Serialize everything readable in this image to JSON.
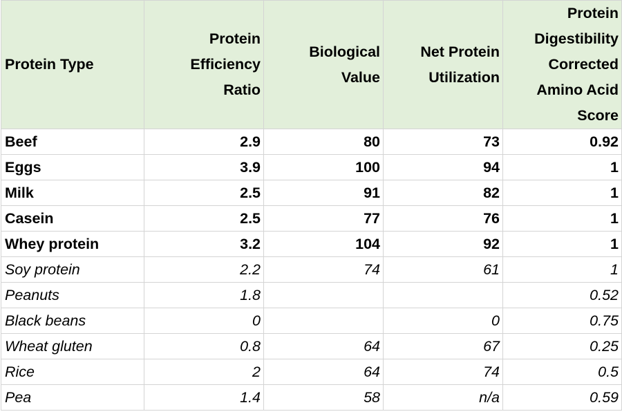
{
  "headers": [
    {
      "lines": [
        "Protein Type"
      ]
    },
    {
      "lines": [
        "Protein",
        "Efficiency",
        "Ratio"
      ]
    },
    {
      "lines": [
        "Biological",
        "Value"
      ]
    },
    {
      "lines": [
        "Net Protein",
        "Utilization"
      ]
    },
    {
      "lines": [
        "Protein",
        "Digestibility",
        "Corrected",
        "Amino Acid",
        "Score"
      ]
    }
  ],
  "rows": [
    {
      "style": "bold",
      "cells": [
        "Beef",
        "2.9",
        "80",
        "73",
        "0.92"
      ]
    },
    {
      "style": "bold",
      "cells": [
        "Eggs",
        "3.9",
        "100",
        "94",
        "1"
      ]
    },
    {
      "style": "bold",
      "cells": [
        "Milk",
        "2.5",
        "91",
        "82",
        "1"
      ]
    },
    {
      "style": "bold",
      "cells": [
        "Casein",
        "2.5",
        "77",
        "76",
        "1"
      ]
    },
    {
      "style": "bold",
      "cells": [
        "Whey protein",
        "3.2",
        "104",
        "92",
        "1"
      ]
    },
    {
      "style": "italic",
      "cells": [
        "Soy protein",
        "2.2",
        "74",
        "61",
        "1"
      ]
    },
    {
      "style": "italic",
      "cells": [
        "Peanuts",
        "1.8",
        "",
        "",
        "0.52"
      ]
    },
    {
      "style": "italic",
      "cells": [
        "Black beans",
        "0",
        "",
        "0",
        "0.75"
      ]
    },
    {
      "style": "italic",
      "cells": [
        "Wheat gluten",
        "0.8",
        "64",
        "67",
        "0.25"
      ]
    },
    {
      "style": "italic",
      "cells": [
        "Rice",
        "2",
        "64",
        "74",
        "0.5"
      ]
    },
    {
      "style": "italic",
      "cells": [
        "Pea",
        "1.4",
        "58",
        "n/a",
        "0.59"
      ]
    }
  ]
}
